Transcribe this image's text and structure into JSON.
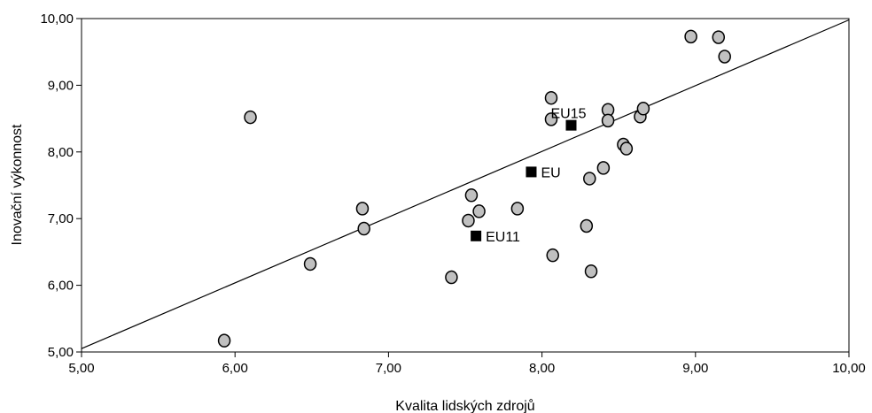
{
  "chart_data": {
    "type": "scatter",
    "title": "",
    "xlabel": "Kvalita lidských zdrojů",
    "ylabel": "Inovační výkonnost",
    "xlim": [
      5,
      10
    ],
    "ylim": [
      5,
      10
    ],
    "x_ticks": [
      "5,00",
      "6,00",
      "7,00",
      "8,00",
      "9,00",
      "10,00"
    ],
    "y_ticks": [
      "5,00",
      "6,00",
      "7,00",
      "8,00",
      "9,00",
      "10,00"
    ],
    "grid": false,
    "legend": "none",
    "colors": {
      "point_fill": "#c0c0c0",
      "point_stroke": "#000000",
      "highlight": "#000000",
      "trendline": "#000000"
    },
    "series": [
      {
        "values": [
          {
            "x": 5.93,
            "y": 5.17
          },
          {
            "x": 6.1,
            "y": 8.52
          },
          {
            "x": 6.49,
            "y": 6.32
          },
          {
            "x": 6.83,
            "y": 7.15
          },
          {
            "x": 6.84,
            "y": 6.85
          },
          {
            "x": 7.41,
            "y": 6.12
          },
          {
            "x": 7.52,
            "y": 6.97
          },
          {
            "x": 7.54,
            "y": 7.35
          },
          {
            "x": 7.59,
            "y": 7.11
          },
          {
            "x": 7.84,
            "y": 7.15
          },
          {
            "x": 8.06,
            "y": 8.81
          },
          {
            "x": 8.06,
            "y": 8.49
          },
          {
            "x": 8.07,
            "y": 6.45
          },
          {
            "x": 8.29,
            "y": 6.89
          },
          {
            "x": 8.31,
            "y": 7.6
          },
          {
            "x": 8.32,
            "y": 6.21
          },
          {
            "x": 8.4,
            "y": 7.76
          },
          {
            "x": 8.43,
            "y": 8.63
          },
          {
            "x": 8.43,
            "y": 8.47
          },
          {
            "x": 8.53,
            "y": 8.11
          },
          {
            "x": 8.55,
            "y": 8.05
          },
          {
            "x": 8.64,
            "y": 8.53
          },
          {
            "x": 8.66,
            "y": 8.65
          },
          {
            "x": 8.97,
            "y": 9.73
          },
          {
            "x": 9.15,
            "y": 9.72
          },
          {
            "x": 9.19,
            "y": 9.43
          }
        ]
      }
    ],
    "highlighted": [
      {
        "label": "EU15",
        "x": 8.19,
        "y": 8.4
      },
      {
        "label": "EU",
        "x": 7.93,
        "y": 7.7
      },
      {
        "label": "EU11",
        "x": 7.57,
        "y": 6.74
      }
    ],
    "trendline": {
      "x1": 5.0,
      "y1": 5.05,
      "x2": 10.0,
      "y2": 9.98
    }
  }
}
